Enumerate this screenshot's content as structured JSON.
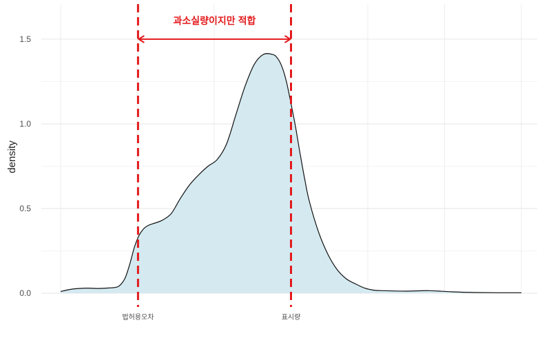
{
  "chart_data": {
    "type": "area",
    "title": "",
    "xlabel": "",
    "ylabel": "density",
    "ylim": [
      0,
      1.65
    ],
    "xlim": [
      0,
      1
    ],
    "grid": true,
    "y_ticks": [
      0.0,
      0.5,
      1.0,
      1.5
    ],
    "y_tick_labels": [
      "0.0",
      "0.5",
      "1.0",
      "1.5"
    ],
    "x_tick_labels": [
      {
        "x": 0.168,
        "label": "법허용오차"
      },
      {
        "x": 0.5,
        "label": "표시량"
      }
    ],
    "fill_color": "#d4e9f0",
    "line_color": "#111111",
    "marker_color": "#e31a1c",
    "vlines": [
      0.168,
      0.5
    ],
    "annotation": {
      "text": "과소실량이지만 적합",
      "x_from": 0.168,
      "x_to": 0.5,
      "y": 1.5
    },
    "series": [
      {
        "x": [
          0.0,
          0.02,
          0.04,
          0.06,
          0.08,
          0.1,
          0.12,
          0.13,
          0.14,
          0.15,
          0.16,
          0.17,
          0.18,
          0.19,
          0.2,
          0.22,
          0.24,
          0.26,
          0.28,
          0.3,
          0.32,
          0.34,
          0.36,
          0.38,
          0.4,
          0.42,
          0.44,
          0.46,
          0.47,
          0.48,
          0.49,
          0.5,
          0.51,
          0.52,
          0.53,
          0.54,
          0.56,
          0.58,
          0.6,
          0.62,
          0.64,
          0.66,
          0.68,
          0.7,
          0.75,
          0.8,
          0.85,
          0.9,
          0.95,
          1.0
        ],
        "values": [
          0.01,
          0.022,
          0.028,
          0.03,
          0.028,
          0.03,
          0.035,
          0.05,
          0.09,
          0.17,
          0.27,
          0.34,
          0.38,
          0.4,
          0.41,
          0.43,
          0.47,
          0.56,
          0.64,
          0.7,
          0.75,
          0.79,
          0.88,
          1.05,
          1.22,
          1.35,
          1.41,
          1.41,
          1.39,
          1.34,
          1.25,
          1.12,
          0.98,
          0.82,
          0.67,
          0.54,
          0.36,
          0.23,
          0.14,
          0.085,
          0.055,
          0.03,
          0.018,
          0.015,
          0.012,
          0.015,
          0.008,
          0.004,
          0.003,
          0.003
        ]
      }
    ]
  }
}
